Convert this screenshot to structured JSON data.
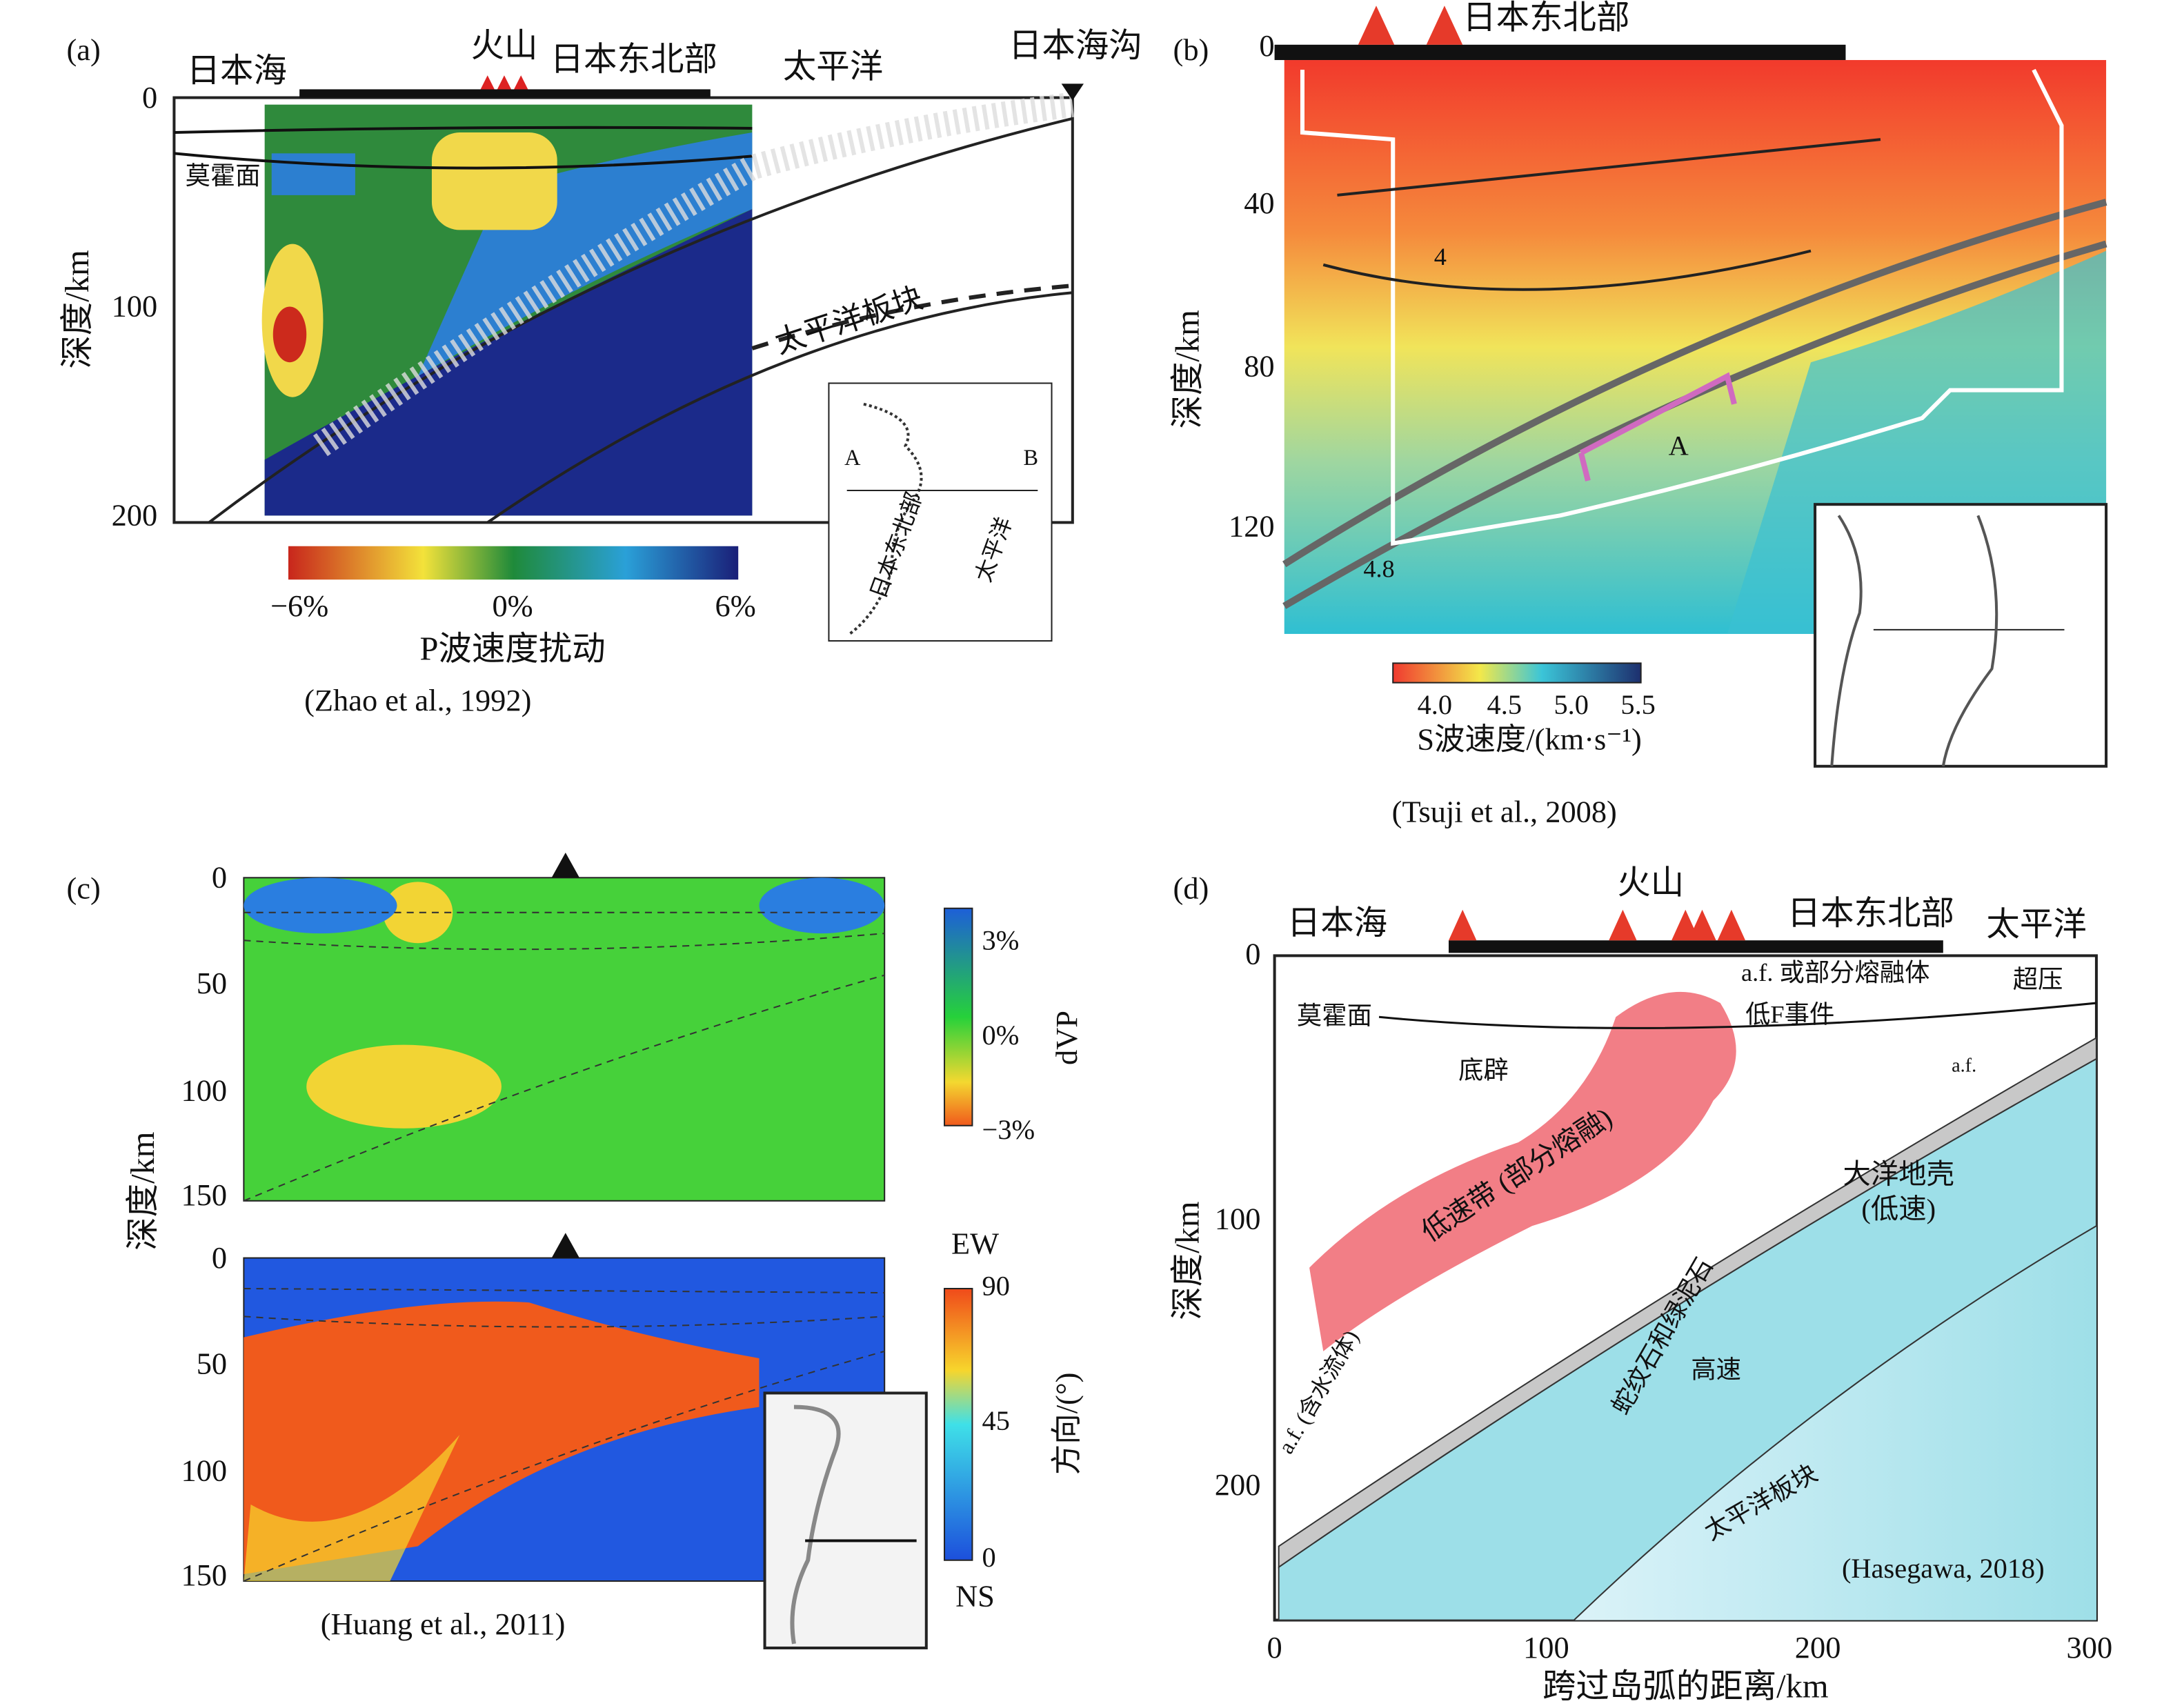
{
  "panel_a": {
    "label": "(a)",
    "place_names": [
      "日本海",
      "火山",
      "日本东北部",
      "太平洋",
      "日本海沟"
    ],
    "moho": "莫霍面",
    "plate": "太平洋板块",
    "y_axis_label": "深度/km",
    "y_ticks": [
      "0",
      "100",
      "200"
    ],
    "colorbar_ticks": [
      "−6%",
      "0%",
      "6%"
    ],
    "colorbar_label": "P波速度扰动",
    "citation": "(Zhao et al., 1992)",
    "inset_labels": [
      "A",
      "B",
      "日本东北部",
      "太平洋"
    ]
  },
  "panel_b": {
    "label": "(b)",
    "region": "日本东北部",
    "y_axis_label": "深度/km",
    "y_ticks": [
      "0",
      "40",
      "80",
      "120"
    ],
    "contour_labels": [
      "4",
      "4.8"
    ],
    "marker": "A",
    "colorbar_ticks": [
      "4.0",
      "4.5",
      "5.0",
      "5.5"
    ],
    "colorbar_label": "S波速度/(km·s⁻¹)",
    "citation": "(Tsuji et al., 2008)"
  },
  "panel_c": {
    "label": "(c)",
    "y_axis_label": "深度/km",
    "top_y_ticks": [
      "0",
      "50",
      "100",
      "150"
    ],
    "bottom_y_ticks": [
      "0",
      "50",
      "100",
      "150"
    ],
    "top_colorbar_ticks": [
      "3%",
      "0%",
      "−3%"
    ],
    "top_colorbar_label": "dVP",
    "bottom_colorbar_ticks": [
      "90",
      "45",
      "0"
    ],
    "bottom_colorbar_ends": [
      "EW",
      "NS"
    ],
    "bottom_colorbar_label": "方向/(°)",
    "citation": "(Huang et al., 2011)"
  },
  "panel_d": {
    "label": "(d)",
    "place_names": [
      "日本海",
      "火山",
      "日本东北部",
      "太平洋"
    ],
    "annotations": [
      "a.f. 或部分熔融体",
      "低F事件",
      "莫霍面",
      "超压",
      "底辟",
      "a.f.",
      "低速带 (部分熔融)",
      "大洋地壳",
      "(低速)",
      "蛇纹石和绿泥石",
      "高速",
      "a.f. (含水流体)",
      "太平洋板块"
    ],
    "y_axis_label": "深度/km",
    "y_ticks": [
      "0",
      "100",
      "200"
    ],
    "x_ticks": [
      "0",
      "100",
      "200",
      "300"
    ],
    "x_axis_label": "跨过岛弧的距离/km",
    "citation": "(Hasegawa, 2018)"
  }
}
